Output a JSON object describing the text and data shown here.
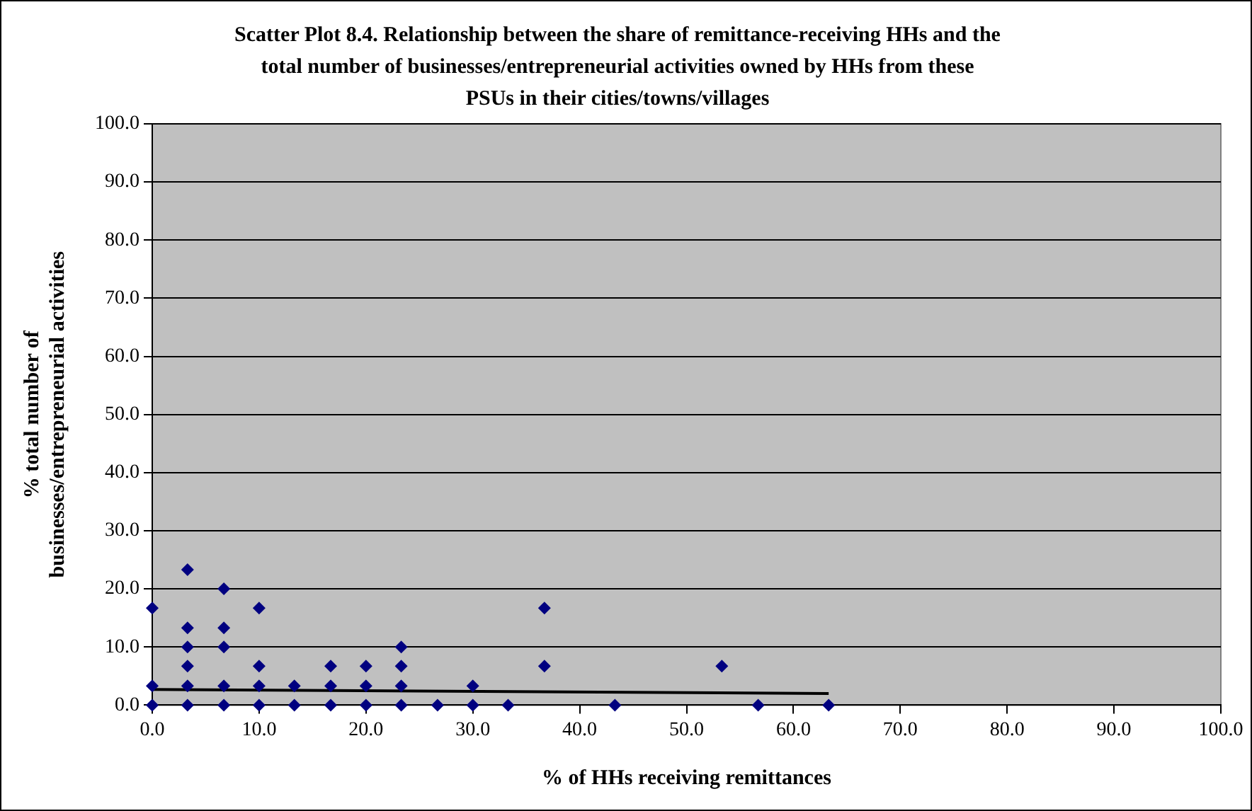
{
  "chart_data": {
    "type": "scatter",
    "title": "Scatter Plot 8.4. Relationship between the share of remittance-receiving HHs and the\ntotal number of businesses/entrepreneurial activities owned by HHs from these\nPSUs in their cities/towns/villages",
    "xlabel": "% of HHs receiving remittances",
    "ylabel": "% total number of\nbusinesses/entrepreneurial activities",
    "series": [
      {
        "type": "scatter",
        "color": "#000080",
        "marker": "diamond",
        "x": [
          0,
          0,
          0,
          3.3,
          3.3,
          3.3,
          3.3,
          3.3,
          3.3,
          6.7,
          6.7,
          6.7,
          6.7,
          6.7,
          10,
          10,
          10,
          10,
          13.3,
          13.3,
          16.7,
          16.7,
          16.7,
          20,
          20,
          20,
          23.3,
          23.3,
          23.3,
          23.3,
          26.7,
          30,
          30,
          33.3,
          36.7,
          36.7,
          43.3,
          53.3,
          56.7,
          63.3
        ],
        "values": [
          16.7,
          3.3,
          0,
          23.3,
          13.3,
          10,
          6.7,
          3.3,
          0,
          20,
          13.3,
          10,
          3.3,
          0,
          16.7,
          6.7,
          3.3,
          0,
          3.3,
          0,
          6.7,
          3.3,
          0,
          6.7,
          3.3,
          0,
          10,
          6.7,
          3.3,
          0,
          0,
          3.3,
          0,
          0,
          16.7,
          6.7,
          0,
          6.7,
          0,
          0
        ]
      },
      {
        "type": "line",
        "color": "#000000",
        "marker": "none",
        "x": [
          0,
          63.3
        ],
        "values": [
          2.7,
          2.0
        ]
      }
    ],
    "xlim": [
      0,
      100
    ],
    "xticks": [
      {
        "value": 0,
        "label": "0.0"
      },
      {
        "value": 10,
        "label": "10.0"
      },
      {
        "value": 20,
        "label": "20.0"
      },
      {
        "value": 30,
        "label": "30.0"
      },
      {
        "value": 40,
        "label": "40.0"
      },
      {
        "value": 50,
        "label": "50.0"
      },
      {
        "value": 60,
        "label": "60.0"
      },
      {
        "value": 70,
        "label": "70.0"
      },
      {
        "value": 80,
        "label": "80.0"
      },
      {
        "value": 90,
        "label": "90.0"
      },
      {
        "value": 100,
        "label": "100.0"
      }
    ],
    "ylim": [
      0,
      100
    ],
    "yticks": [
      {
        "value": 0,
        "label": "0.0"
      },
      {
        "value": 10,
        "label": "10.0"
      },
      {
        "value": 20,
        "label": "20.0"
      },
      {
        "value": 30,
        "label": "30.0"
      },
      {
        "value": 40,
        "label": "40.0"
      },
      {
        "value": 50,
        "label": "50.0"
      },
      {
        "value": 60,
        "label": "60.0"
      },
      {
        "value": 70,
        "label": "70.0"
      },
      {
        "value": 80,
        "label": "80.0"
      },
      {
        "value": 90,
        "label": "90.0"
      },
      {
        "value": 100,
        "label": "100.0"
      }
    ],
    "grid": "y",
    "legend": false
  }
}
